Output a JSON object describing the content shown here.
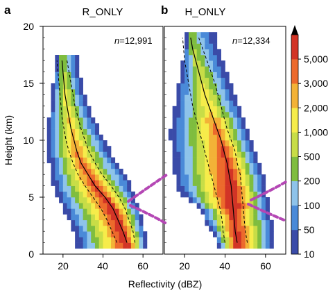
{
  "chart_data": [
    {
      "type": "heatmap",
      "panel_label": "a",
      "title": "R_ONLY",
      "annotation_n_prefix": "n",
      "annotation_n_value": "=12,991",
      "xlabel": "Reflectivity (dBZ)",
      "ylabel": "Height (km)",
      "xlim": [
        10,
        70
      ],
      "ylim": [
        0,
        20
      ],
      "xticks": [
        "20",
        "40",
        "60"
      ],
      "xtick_values": [
        20,
        40,
        60
      ],
      "yticks": [
        "0",
        "5",
        "10",
        "15",
        "20"
      ],
      "ytick_values": [
        0,
        5,
        10,
        15,
        20
      ],
      "y_levels": [
        1,
        2,
        3,
        4,
        5,
        6,
        7,
        8,
        9,
        10,
        11,
        12,
        13,
        14,
        15,
        16,
        17
      ],
      "reflectivity_range": {
        "lower": [
          27,
          25,
          23,
          20,
          17,
          15,
          14,
          13,
          13,
          13,
          13,
          13,
          14,
          14,
          15,
          16,
          17
        ],
        "upper": [
          62,
          61,
          60,
          58,
          56,
          54,
          51,
          47,
          44,
          41,
          38,
          35,
          33,
          31,
          30,
          28,
          27
        ]
      },
      "profiles": {
        "median": [
          52,
          50,
          47.5,
          45,
          41,
          36,
          32.5,
          29,
          27,
          25.5,
          24,
          23,
          22,
          21,
          20.5,
          20,
          19.5
        ],
        "q25": [
          47,
          44.5,
          42,
          39,
          35,
          31,
          27.5,
          25,
          23,
          21.5,
          20.5,
          19.5,
          19,
          18.5,
          18,
          17.5,
          17
        ],
        "q75": [
          56,
          55,
          53,
          51,
          48,
          44,
          39.5,
          36,
          33,
          31,
          29,
          27.5,
          26,
          25,
          24,
          23,
          22
        ]
      }
    },
    {
      "type": "heatmap",
      "panel_label": "b",
      "title": "H_ONLY",
      "annotation_n_prefix": "n",
      "annotation_n_value": "=12,334",
      "xlabel": "Reflectivity (dBZ)",
      "xlim": [
        10,
        70
      ],
      "ylim": [
        0,
        20
      ],
      "xticks": [
        "20",
        "40",
        "60"
      ],
      "xtick_values": [
        20,
        40,
        60
      ],
      "y_levels": [
        1,
        2,
        3,
        4,
        5,
        6,
        7,
        8,
        9,
        10,
        11,
        12,
        13,
        14,
        15,
        16,
        17,
        18,
        19
      ],
      "reflectivity_range": {
        "lower": [
          36,
          33,
          30,
          27,
          20,
          16,
          15,
          14,
          14,
          13,
          13,
          14,
          15,
          16,
          17,
          18,
          19,
          20,
          21
        ],
        "upper": [
          64,
          64,
          63,
          62,
          61,
          60,
          59,
          57,
          55,
          53,
          51,
          49,
          47,
          45,
          43,
          41,
          39,
          37,
          35
        ]
      },
      "profiles": {
        "median": [
          46,
          45,
          44.5,
          44,
          43.5,
          43,
          42,
          41,
          39.5,
          38,
          36,
          34,
          32,
          30,
          28.5,
          27,
          25.5,
          24,
          23
        ],
        "q25": [
          40,
          39,
          38.5,
          37.5,
          36,
          34.5,
          33,
          31.5,
          30,
          28.5,
          27,
          25.5,
          24,
          23,
          22,
          21,
          20,
          19.5,
          19
        ],
        "q75": [
          51,
          50,
          49.5,
          49,
          48.5,
          48,
          47.5,
          46,
          45,
          43,
          41,
          39.5,
          38,
          36.5,
          35,
          33,
          31,
          29,
          27
        ]
      }
    }
  ],
  "colorbar": {
    "labels": [
      "10",
      "50",
      "100",
      "200",
      "500",
      "1,000",
      "2,000",
      "3,000",
      "5,000"
    ],
    "bins": [
      {
        "color": "#3a4ba8"
      },
      {
        "color": "#4a8ad8"
      },
      {
        "color": "#8ec3ea"
      },
      {
        "color": "#7fbd3f"
      },
      {
        "color": "#c8dd47"
      },
      {
        "color": "#f6ec4a"
      },
      {
        "color": "#f3b237"
      },
      {
        "color": "#ec6a2c"
      },
      {
        "color": "#d23426"
      }
    ],
    "tip_color": "#000000"
  },
  "style": {
    "axis_color": "#000000",
    "curve_color": "#000000",
    "connector_color": "#b447b4"
  }
}
